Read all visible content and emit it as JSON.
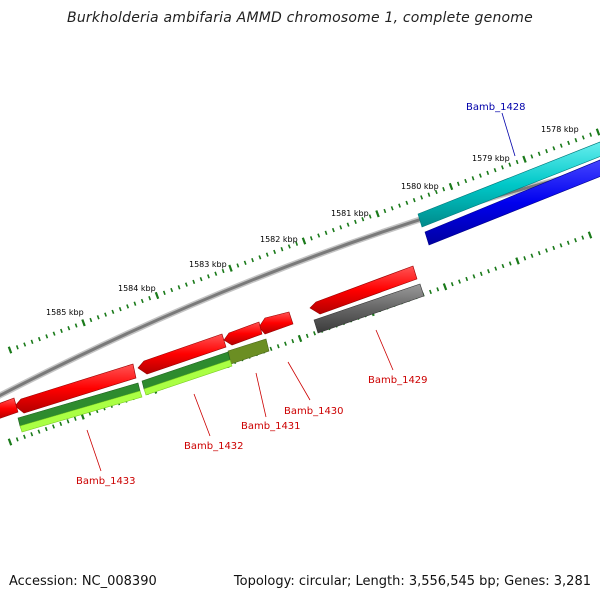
{
  "title": "Burkholderia ambifaria AMMD chromosome 1, complete genome",
  "footer": {
    "accession": "Accession: NC_008390",
    "summary": "Topology: circular; Length: 3,556,545 bp; Genes: 3,281"
  },
  "ticks": [
    {
      "label": "1578 kbp"
    },
    {
      "label": "1579 kbp"
    },
    {
      "label": "1580 kbp"
    },
    {
      "label": "1581 kbp"
    },
    {
      "label": "1582 kbp"
    },
    {
      "label": "1583 kbp"
    },
    {
      "label": "1584 kbp"
    },
    {
      "label": "1585 kbp"
    }
  ],
  "genes": [
    {
      "label": "Bamb_1428",
      "color": "#0000aa"
    },
    {
      "label": "Bamb_1429",
      "color": "#cc0000"
    },
    {
      "label": "Bamb_1430",
      "color": "#cc0000"
    },
    {
      "label": "Bamb_1431",
      "color": "#cc0000"
    },
    {
      "label": "Bamb_1432",
      "color": "#cc0000"
    },
    {
      "label": "Bamb_1433",
      "color": "#cc0000"
    }
  ],
  "colors": {
    "backbone": "#7a7a7a",
    "tick": "#1a7a1a",
    "cds_forward": "#ff0000",
    "cds_reverse": "#0000ee",
    "rna": "#00c8c8",
    "gray_feature": "#555555",
    "dark_green": "#2e8b2e",
    "light_green": "#aaff44",
    "olive": "#6b8e23"
  }
}
